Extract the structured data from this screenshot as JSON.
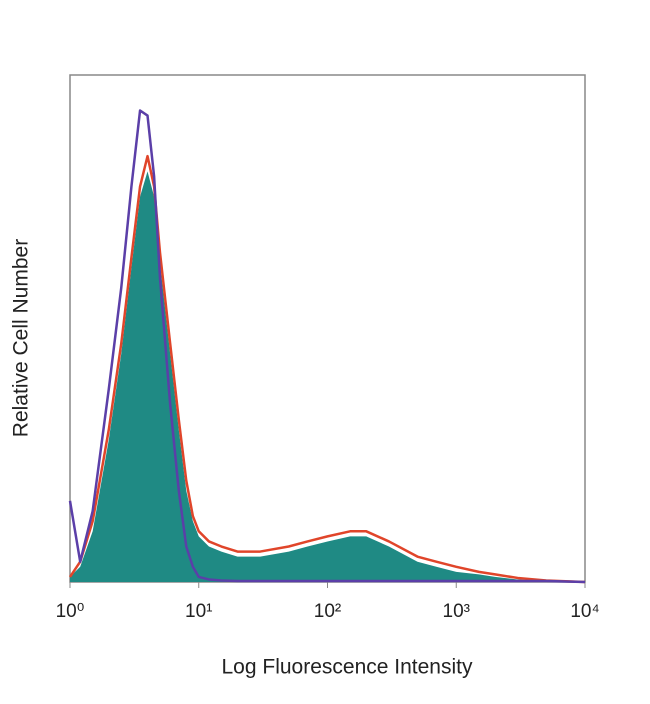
{
  "chart_data": {
    "type": "area",
    "x_label": "Log Fluorescence Intensity",
    "y_label": "Relative Cell Number",
    "x": [
      1,
      1.2,
      1.5,
      2,
      2.5,
      3,
      3.5,
      4,
      4.5,
      5,
      6,
      7,
      8,
      9,
      10,
      12,
      15,
      20,
      30,
      50,
      70,
      100,
      150,
      200,
      300,
      500,
      700,
      1000,
      1500,
      2000,
      3000,
      5000,
      10000
    ],
    "series": [
      {
        "color": "#1f8a84",
        "fill": true,
        "values": [
          1,
          3,
          10,
          28,
          45,
          62,
          76,
          81,
          76,
          63,
          45,
          30,
          18,
          12,
          9,
          7,
          6,
          5,
          5,
          6,
          7,
          8,
          9,
          9,
          7,
          4,
          3,
          2,
          1.5,
          1,
          0.5,
          0.2,
          0
        ]
      },
      {
        "color": "#e0452a",
        "fill": false,
        "values": [
          1,
          4,
          12,
          30,
          47,
          64,
          78,
          84,
          78,
          65,
          47,
          32,
          20,
          13,
          10,
          8,
          7,
          6,
          6,
          7,
          8,
          9,
          10,
          10,
          8,
          5,
          4,
          3,
          2,
          1.5,
          0.8,
          0.3,
          0
        ]
      },
      {
        "color": "#5b3fa8",
        "fill": false,
        "values": [
          16,
          4,
          14,
          38,
          58,
          78,
          93,
          92,
          80,
          60,
          35,
          18,
          7,
          3,
          1,
          0.5,
          0.3,
          0.2,
          0.2,
          0.2,
          0.2,
          0.2,
          0.2,
          0.2,
          0.2,
          0.2,
          0.2,
          0.2,
          0.2,
          0.2,
          0.2,
          0.2,
          0
        ]
      }
    ],
    "xlim": [
      1,
      10000
    ],
    "log_x": true,
    "xticks": [
      {
        "value": 1,
        "label": "10⁰"
      },
      {
        "value": 10,
        "label": "10¹"
      },
      {
        "value": 100,
        "label": "10²"
      },
      {
        "value": 1000,
        "label": "10³"
      },
      {
        "value": 10000,
        "label": "10⁴"
      }
    ],
    "ylim": [
      0,
      100
    ]
  }
}
